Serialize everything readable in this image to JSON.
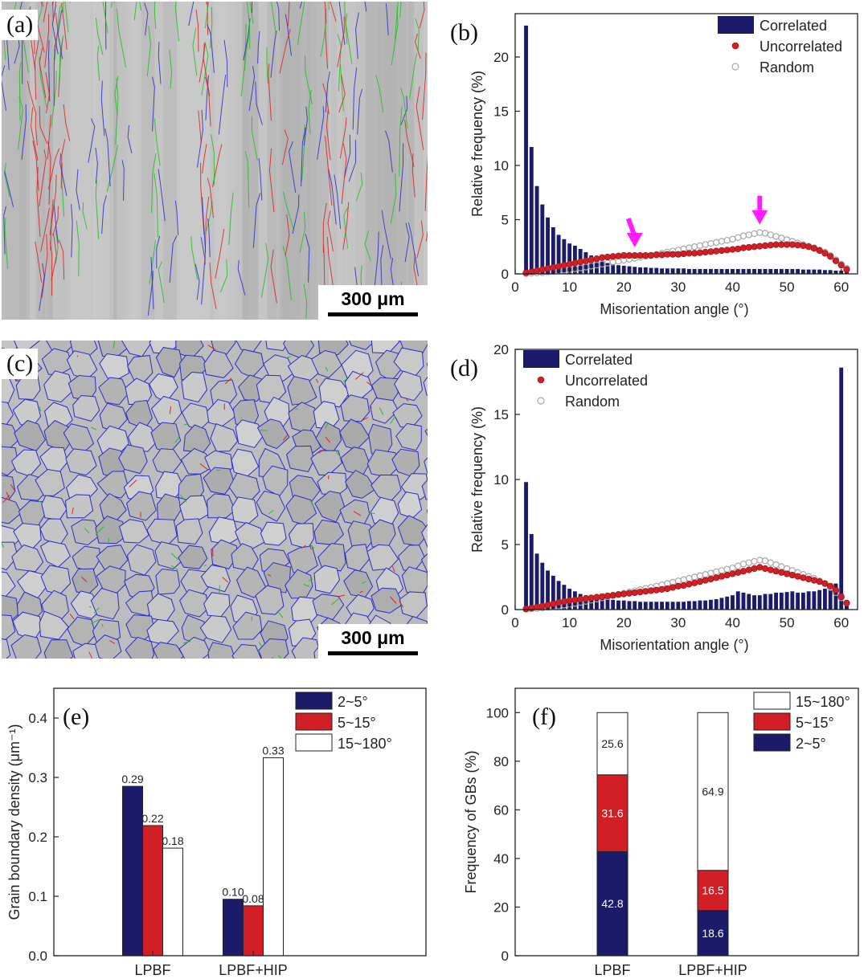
{
  "micrographs": [
    {
      "label": "(a)",
      "scale": "300 μm",
      "legend_name": "micrograph-a"
    },
    {
      "label": "(c)",
      "scale": "300 μm",
      "legend_name": "micrograph-c"
    }
  ],
  "chart_data": [
    {
      "panel": "(b)",
      "type": "bar",
      "xlabel": "Misorientation angle (°)",
      "ylabel": "Relative frequency (%)",
      "xlim": [
        0,
        63
      ],
      "ylim": [
        0,
        24
      ],
      "xticks": [
        0,
        10,
        20,
        30,
        40,
        50,
        60
      ],
      "yticks": [
        0,
        5,
        10,
        15,
        20
      ],
      "legend": [
        "Correlated",
        "Uncorrelated",
        "Random"
      ],
      "legend_position": "top-right",
      "correlated": {
        "x": [
          2,
          3,
          4,
          5,
          6,
          7,
          8,
          9,
          10,
          11,
          12,
          13,
          14,
          15,
          16,
          17,
          18,
          19,
          20,
          21,
          22,
          23,
          24,
          25,
          26,
          27,
          28,
          29,
          30,
          31,
          32,
          33,
          34,
          35,
          36,
          37,
          38,
          39,
          40,
          41,
          42,
          43,
          44,
          45,
          46,
          47,
          48,
          49,
          50,
          51,
          52,
          53,
          54,
          55,
          56,
          57,
          58,
          59,
          60,
          61
        ],
        "values": [
          22.9,
          11.7,
          8.1,
          6.4,
          5.2,
          4.3,
          3.6,
          3.2,
          2.8,
          2.6,
          2.3,
          2.0,
          1.7,
          1.4,
          1.2,
          1.0,
          0.9,
          0.8,
          0.75,
          0.7,
          0.65,
          0.6,
          0.6,
          0.55,
          0.55,
          0.5,
          0.5,
          0.5,
          0.5,
          0.5,
          0.45,
          0.45,
          0.45,
          0.45,
          0.45,
          0.45,
          0.45,
          0.45,
          0.45,
          0.45,
          0.45,
          0.45,
          0.45,
          0.45,
          0.45,
          0.45,
          0.45,
          0.45,
          0.45,
          0.45,
          0.45,
          0.4,
          0.4,
          0.4,
          0.4,
          0.35,
          0.35,
          0.3,
          0.3,
          0.2
        ]
      },
      "uncorrelated": {
        "x": [
          2,
          3,
          4,
          5,
          6,
          7,
          8,
          9,
          10,
          11,
          12,
          13,
          14,
          15,
          16,
          17,
          18,
          19,
          20,
          21,
          22,
          23,
          24,
          25,
          26,
          27,
          28,
          29,
          30,
          31,
          32,
          33,
          34,
          35,
          36,
          37,
          38,
          39,
          40,
          41,
          42,
          43,
          44,
          45,
          46,
          47,
          48,
          49,
          50,
          51,
          52,
          53,
          54,
          55,
          56,
          57,
          58,
          59,
          60,
          61
        ],
        "values": [
          0.1,
          0.2,
          0.3,
          0.4,
          0.5,
          0.6,
          0.7,
          0.8,
          0.9,
          1.0,
          1.1,
          1.2,
          1.3,
          1.4,
          1.5,
          1.55,
          1.6,
          1.65,
          1.7,
          1.7,
          1.7,
          1.7,
          1.7,
          1.7,
          1.75,
          1.75,
          1.8,
          1.8,
          1.8,
          1.85,
          1.9,
          1.9,
          1.95,
          2.0,
          2.05,
          2.1,
          2.15,
          2.2,
          2.25,
          2.3,
          2.4,
          2.45,
          2.5,
          2.55,
          2.6,
          2.65,
          2.7,
          2.7,
          2.7,
          2.7,
          2.65,
          2.6,
          2.5,
          2.35,
          2.15,
          1.9,
          1.6,
          1.2,
          0.8,
          0.4
        ]
      },
      "random": {
        "x": [
          2,
          3,
          4,
          5,
          6,
          7,
          8,
          9,
          10,
          11,
          12,
          13,
          14,
          15,
          16,
          17,
          18,
          19,
          20,
          21,
          22,
          23,
          24,
          25,
          26,
          27,
          28,
          29,
          30,
          31,
          32,
          33,
          34,
          35,
          36,
          37,
          38,
          39,
          40,
          41,
          42,
          43,
          44,
          45,
          46,
          47,
          48,
          49,
          50,
          51,
          52,
          53,
          54,
          55,
          56,
          57,
          58,
          59,
          60,
          61
        ],
        "values": [
          0.02,
          0.05,
          0.08,
          0.12,
          0.17,
          0.22,
          0.28,
          0.34,
          0.4,
          0.47,
          0.55,
          0.63,
          0.72,
          0.81,
          0.9,
          0.99,
          1.08,
          1.17,
          1.26,
          1.35,
          1.44,
          1.53,
          1.62,
          1.71,
          1.8,
          1.9,
          2.0,
          2.1,
          2.2,
          2.3,
          2.4,
          2.5,
          2.6,
          2.7,
          2.8,
          2.9,
          3.0,
          3.1,
          3.2,
          3.35,
          3.5,
          3.6,
          3.7,
          3.8,
          3.75,
          3.6,
          3.45,
          3.3,
          3.15,
          3.0,
          2.85,
          2.7,
          2.55,
          2.4,
          2.2,
          2.0,
          1.7,
          1.3,
          0.9,
          0.5
        ]
      },
      "arrows_at_x": [
        22,
        45
      ]
    },
    {
      "panel": "(d)",
      "type": "bar",
      "xlabel": "Misorientation angle (°)",
      "ylabel": "Relative frequency (%)",
      "xlim": [
        0,
        63
      ],
      "ylim": [
        0,
        20
      ],
      "xticks": [
        0,
        10,
        20,
        30,
        40,
        50,
        60
      ],
      "yticks": [
        0,
        5,
        10,
        15,
        20
      ],
      "legend": [
        "Correlated",
        "Uncorrelated",
        "Random"
      ],
      "legend_position": "top-left",
      "correlated": {
        "x": [
          2,
          3,
          4,
          5,
          6,
          7,
          8,
          9,
          10,
          11,
          12,
          13,
          14,
          15,
          16,
          17,
          18,
          19,
          20,
          21,
          22,
          23,
          24,
          25,
          26,
          27,
          28,
          29,
          30,
          31,
          32,
          33,
          34,
          35,
          36,
          37,
          38,
          39,
          40,
          41,
          42,
          43,
          44,
          45,
          46,
          47,
          48,
          49,
          50,
          51,
          52,
          53,
          54,
          55,
          56,
          57,
          58,
          59,
          60,
          61
        ],
        "values": [
          9.8,
          5.8,
          4.3,
          3.6,
          3.0,
          2.6,
          2.2,
          1.9,
          1.6,
          1.4,
          1.2,
          1.1,
          1.0,
          0.9,
          0.85,
          0.8,
          0.75,
          0.7,
          0.7,
          0.65,
          0.65,
          0.6,
          0.6,
          0.6,
          0.6,
          0.6,
          0.6,
          0.6,
          0.6,
          0.6,
          0.65,
          0.65,
          0.7,
          0.7,
          0.75,
          0.8,
          0.9,
          1.0,
          1.1,
          1.4,
          1.3,
          1.2,
          1.1,
          1.1,
          1.2,
          1.2,
          1.3,
          1.3,
          1.35,
          1.4,
          1.3,
          1.3,
          1.4,
          1.4,
          1.5,
          1.6,
          1.5,
          2.0,
          18.6,
          0.3
        ]
      },
      "uncorrelated": {
        "x": [
          2,
          3,
          4,
          5,
          6,
          7,
          8,
          9,
          10,
          11,
          12,
          13,
          14,
          15,
          16,
          17,
          18,
          19,
          20,
          21,
          22,
          23,
          24,
          25,
          26,
          27,
          28,
          29,
          30,
          31,
          32,
          33,
          34,
          35,
          36,
          37,
          38,
          39,
          40,
          41,
          42,
          43,
          44,
          45,
          46,
          47,
          48,
          49,
          50,
          51,
          52,
          53,
          54,
          55,
          56,
          57,
          58,
          59,
          60,
          61
        ],
        "values": [
          0.05,
          0.12,
          0.2,
          0.28,
          0.35,
          0.45,
          0.55,
          0.62,
          0.7,
          0.75,
          0.8,
          0.85,
          0.9,
          0.95,
          1.0,
          1.05,
          1.1,
          1.15,
          1.2,
          1.25,
          1.3,
          1.35,
          1.4,
          1.45,
          1.5,
          1.55,
          1.6,
          1.7,
          1.8,
          1.85,
          1.95,
          2.05,
          2.15,
          2.25,
          2.35,
          2.45,
          2.55,
          2.65,
          2.75,
          2.85,
          2.95,
          3.05,
          3.15,
          3.25,
          3.15,
          3.05,
          2.95,
          2.85,
          2.75,
          2.65,
          2.55,
          2.45,
          2.35,
          2.25,
          2.15,
          2.0,
          1.8,
          1.5,
          1.0,
          0.5
        ]
      },
      "random": {
        "x": [
          2,
          3,
          4,
          5,
          6,
          7,
          8,
          9,
          10,
          11,
          12,
          13,
          14,
          15,
          16,
          17,
          18,
          19,
          20,
          21,
          22,
          23,
          24,
          25,
          26,
          27,
          28,
          29,
          30,
          31,
          32,
          33,
          34,
          35,
          36,
          37,
          38,
          39,
          40,
          41,
          42,
          43,
          44,
          45,
          46,
          47,
          48,
          49,
          50,
          51,
          52,
          53,
          54,
          55,
          56,
          57,
          58,
          59,
          60,
          61
        ],
        "values": [
          0.02,
          0.05,
          0.08,
          0.12,
          0.17,
          0.22,
          0.28,
          0.34,
          0.4,
          0.47,
          0.55,
          0.63,
          0.72,
          0.81,
          0.9,
          0.99,
          1.08,
          1.17,
          1.26,
          1.35,
          1.44,
          1.53,
          1.62,
          1.71,
          1.8,
          1.9,
          2.0,
          2.1,
          2.2,
          2.3,
          2.4,
          2.5,
          2.6,
          2.7,
          2.8,
          2.9,
          3.0,
          3.1,
          3.2,
          3.35,
          3.5,
          3.6,
          3.7,
          3.8,
          3.75,
          3.6,
          3.45,
          3.3,
          3.15,
          3.0,
          2.85,
          2.7,
          2.55,
          2.4,
          2.2,
          2.0,
          1.7,
          1.3,
          0.9,
          0.5
        ]
      }
    },
    {
      "panel": "(e)",
      "type": "bar",
      "ylabel": "Grain boundary density (μm⁻¹)",
      "ylabel_unit_sup": "-1",
      "categories": [
        "LPBF",
        "LPBF+HIP"
      ],
      "ylim": [
        0,
        0.45
      ],
      "yticks": [
        0.0,
        0.1,
        0.2,
        0.3,
        0.4
      ],
      "ytick_labels": [
        "0.0",
        "0.1",
        "0.2",
        "0.3",
        "0.4"
      ],
      "series": [
        {
          "name": "2~5°",
          "color": "#1c1a6b",
          "values": [
            0.285,
            0.095
          ],
          "labels": [
            "0.29",
            "0.10"
          ]
        },
        {
          "name": "5~15°",
          "color": "#d21f26",
          "values": [
            0.219,
            0.084
          ],
          "labels": [
            "0.22",
            "0.08"
          ]
        },
        {
          "name": "15~180°",
          "color": "#ffffff",
          "values": [
            0.181,
            0.333
          ],
          "labels": [
            "0.18",
            "0.33"
          ]
        }
      ],
      "legend_position": "top-right"
    },
    {
      "panel": "(f)",
      "type": "bar",
      "stacked": true,
      "ylabel": "Frequency of GBs (%)",
      "categories": [
        "LPBF",
        "LPBF+HIP"
      ],
      "ylim": [
        0,
        110
      ],
      "yticks": [
        0,
        20,
        40,
        60,
        80,
        100
      ],
      "series": [
        {
          "name": "2~5°",
          "color": "#1c1a6b",
          "values": [
            42.8,
            18.6
          ],
          "labels": [
            "42.8",
            "18.6"
          ]
        },
        {
          "name": "5~15°",
          "color": "#d21f26",
          "values": [
            31.6,
            16.5
          ],
          "labels": [
            "31.6",
            "16.5"
          ]
        },
        {
          "name": "15~180°",
          "color": "#ffffff",
          "values": [
            25.6,
            64.9
          ],
          "labels": [
            "25.6",
            "64.9"
          ]
        }
      ],
      "legend_order": [
        "15~180°",
        "5~15°",
        "2~5°"
      ],
      "legend_position": "top-right"
    }
  ],
  "colors": {
    "navy": "#1c1a6b",
    "red": "#d21f26",
    "magenta": "#ff1dff",
    "axis": "#222222"
  }
}
